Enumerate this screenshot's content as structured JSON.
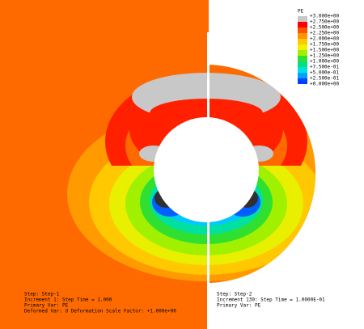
{
  "legend": {
    "title": "PE",
    "labels": [
      "+3.000e+00",
      "+2.750e+00",
      "+2.500e+00",
      "+2.250e+00",
      "+2.000e+00",
      "+1.750e+00",
      "+1.500e+00",
      "+1.250e+00",
      "+1.000e+00",
      "+7.500e-01",
      "+5.000e-01",
      "+2.500e-01",
      "+0.000e+00"
    ]
  },
  "left_info": [
    "Step: Step-1",
    "Increment 1: Step Time = 1.000",
    "Primary Var: PE",
    "Deformed Var: U   Deformation Scale Factor: +1.000e+00"
  ],
  "right_info": [
    "Step: Step-2",
    "Increment 130: Step Time = 1.0000E-01",
    "Primary Var: PE"
  ]
}
